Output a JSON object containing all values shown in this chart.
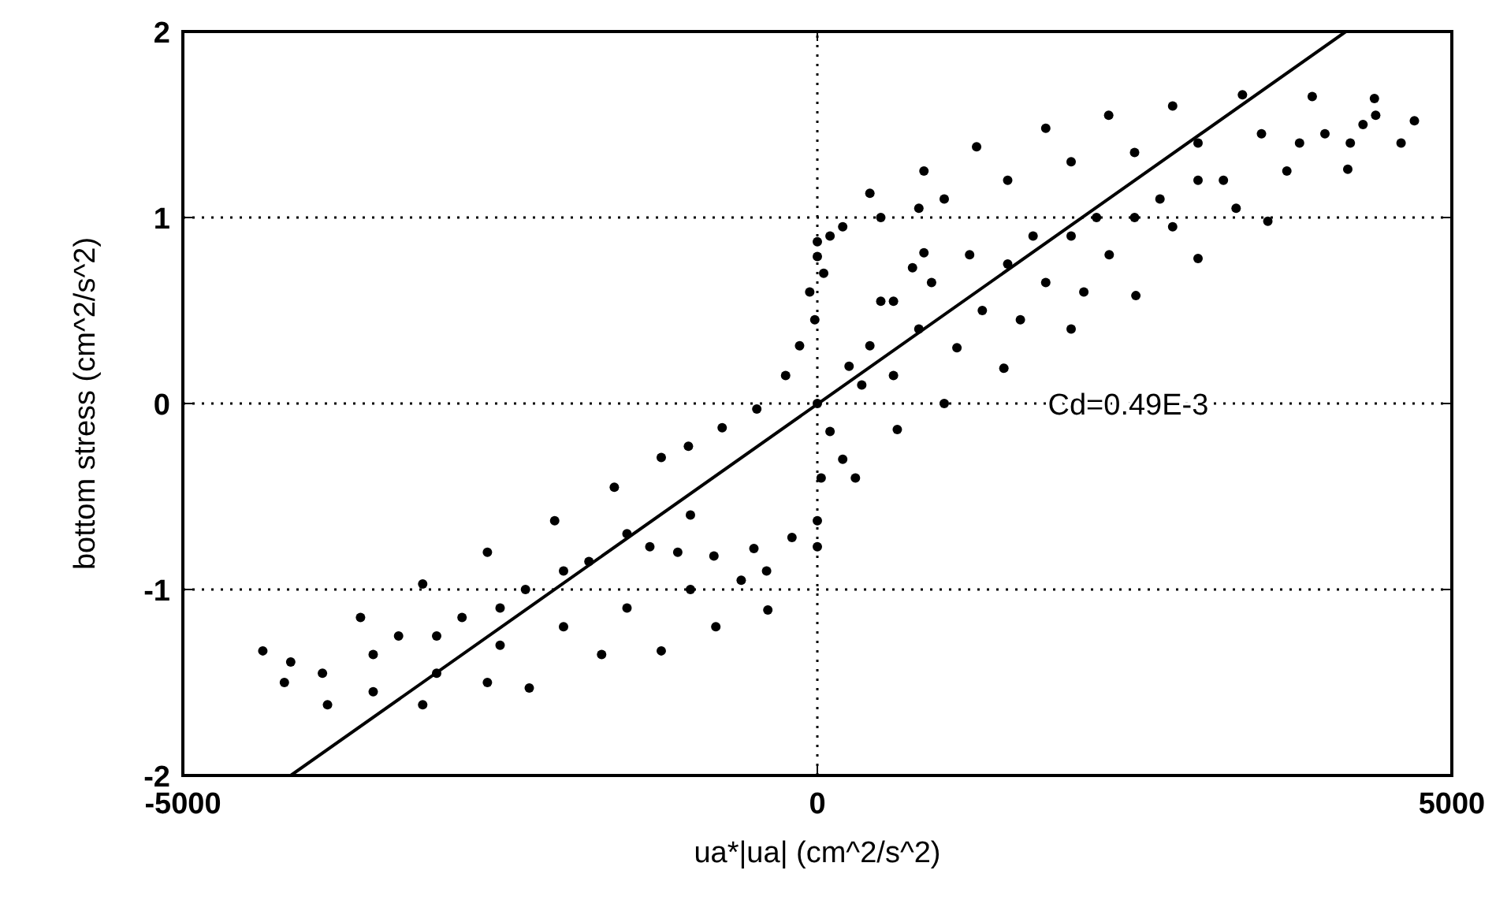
{
  "chart_data": {
    "type": "scatter",
    "xlabel": "ua*|ua| (cm^2/s^2)",
    "ylabel": "bottom stress (cm^2/s^2)",
    "xlim": [
      -5000,
      5000
    ],
    "ylim": [
      -2,
      2
    ],
    "xticks": [
      -5000,
      0,
      5000
    ],
    "yticks": [
      -2,
      -1,
      0,
      1,
      2
    ],
    "grid": true,
    "marker": "circle",
    "annotations": [
      "Cd=0.49E-3"
    ],
    "series": [
      {
        "color": "#000000",
        "x": [
          414,
          840,
          1255,
          1800,
          2296,
          2800,
          3350,
          3900,
          4390,
          4705,
          4600,
          4180,
          3550,
          3000,
          2510,
          2000,
          1470,
          1000,
          630,
          300,
          1000,
          1500,
          2000,
          2500,
          3000,
          3500,
          4000,
          4300,
          1200,
          1700,
          2200,
          2700,
          3200,
          3700,
          4200,
          800,
          1300,
          1800,
          2300,
          2800,
          3300,
          600,
          1100,
          1600,
          2100,
          500,
          900,
          1500,
          2000,
          2500,
          3000,
          3800,
          4400,
          200,
          350,
          800,
          500,
          200,
          0,
          0,
          -60,
          -140,
          -250,
          -477,
          -750,
          -1016,
          100,
          50,
          -20,
          0,
          100,
          30,
          0,
          -200,
          -500,
          -815,
          -1100,
          -1320,
          250,
          414,
          600,
          750,
          840,
          -1230,
          -1600,
          -2070,
          -2600,
          -3110,
          -3600,
          -4150,
          -4200,
          -3860,
          -3110,
          -2270,
          -1230,
          -390,
          0,
          -1500,
          -2000,
          -2500,
          -3000,
          -3500,
          -3900,
          -1000,
          -1500,
          -2000,
          -2500,
          -3000,
          -3500,
          -800,
          -1700,
          -2600,
          -600,
          -1800,
          -2300,
          -2800,
          -3300,
          -1000,
          -400,
          -4370
        ],
        "values": [
          1.13,
          1.25,
          1.38,
          1.48,
          1.55,
          1.6,
          1.66,
          1.65,
          1.64,
          1.52,
          1.4,
          1.26,
          0.98,
          0.78,
          0.58,
          0.4,
          0.19,
          0.0,
          -0.14,
          -0.4,
          1.1,
          1.2,
          1.3,
          1.35,
          1.4,
          1.45,
          1.45,
          1.5,
          0.8,
          0.9,
          1.0,
          1.1,
          1.2,
          1.25,
          1.4,
          0.4,
          0.5,
          0.65,
          0.8,
          0.95,
          1.05,
          0.15,
          0.3,
          0.45,
          0.6,
          0.55,
          0.65,
          0.75,
          0.9,
          1.0,
          1.2,
          1.4,
          1.55,
          -0.3,
          0.1,
          1.05,
          1.0,
          0.95,
          0.87,
          0.79,
          0.6,
          0.31,
          0.15,
          -0.03,
          -0.13,
          -0.23,
          0.9,
          0.7,
          0.45,
          0.0,
          -0.15,
          -0.4,
          -0.63,
          -0.72,
          -0.78,
          -0.82,
          -0.8,
          -0.77,
          0.2,
          0.31,
          0.55,
          0.73,
          0.81,
          -0.29,
          -0.45,
          -0.63,
          -0.8,
          -0.97,
          -1.15,
          -1.39,
          -1.5,
          -1.62,
          -1.62,
          -1.53,
          -1.33,
          -1.11,
          -0.77,
          -0.7,
          -0.9,
          -1.1,
          -1.25,
          -1.35,
          -1.45,
          -1.0,
          -1.1,
          -1.2,
          -1.3,
          -1.45,
          -1.55,
          -1.2,
          -1.35,
          -1.5,
          -0.95,
          -0.85,
          -1.0,
          -1.15,
          -1.25,
          -0.6,
          -0.9,
          -1.33
        ]
      },
      {
        "type": "line",
        "color": "#000000",
        "marker": "none",
        "x": [
          -4150,
          4165
        ],
        "values": [
          -2,
          2
        ]
      }
    ]
  }
}
